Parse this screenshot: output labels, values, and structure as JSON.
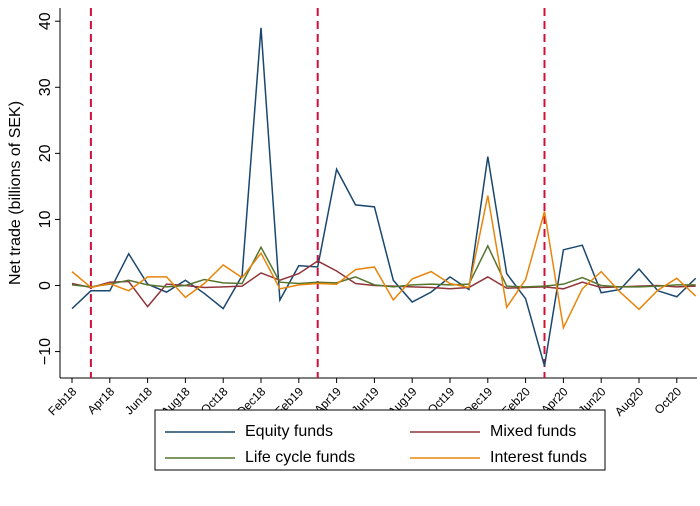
{
  "chart_data": {
    "type": "line",
    "y_label": "Net trade (billions of SEK)",
    "categories": [
      "Feb18",
      null,
      "Apr18",
      null,
      "Jun18",
      null,
      "Aug18",
      null,
      "Oct18",
      null,
      "Dec18",
      null,
      "Feb19",
      null,
      "Apr19",
      null,
      "Jun19",
      null,
      "Aug19",
      null,
      "Oct19",
      null,
      "Dec19",
      null,
      "Feb20",
      null,
      "Apr20",
      null,
      "Jun20",
      null,
      "Aug20",
      null,
      "Oct20",
      null
    ],
    "series": [
      {
        "name": "Equity funds",
        "color": "#1a476f",
        "values": [
          -3.5,
          -0.8,
          -0.8,
          4.8,
          0.2,
          -1,
          0.8,
          -1.2,
          -3.5,
          1.5,
          39,
          -2.2,
          3,
          2.8,
          17.6,
          12.2,
          11.9,
          0.8,
          -2.5,
          -1.0,
          1.3,
          -0.6,
          19.5,
          1.8,
          -2,
          -12.2,
          5.4,
          6.1,
          -1.1,
          -0.6,
          2.5,
          -0.8,
          -1.7,
          1.1
        ]
      },
      {
        "name": "Mixed funds",
        "color": "#90353b",
        "values": [
          0.3,
          -0.3,
          0.5,
          0.6,
          -3.2,
          0.2,
          0.0,
          -0.3,
          -0.2,
          -0.1,
          1.9,
          0.8,
          1.8,
          3.7,
          2.2,
          0.3,
          0.0,
          -0.1,
          -0.2,
          -0.3,
          -0.5,
          -0.3,
          1.3,
          -0.4,
          -0.3,
          -0.2,
          -0.5,
          0.5,
          -0.3,
          -0.2,
          -0.1,
          0,
          -0.2,
          -0.1
        ]
      },
      {
        "name": "Life cycle funds",
        "color": "#55752f",
        "values": [
          0.1,
          -0.2,
          0.2,
          0.8,
          0.1,
          -0.2,
          0,
          0.9,
          0.4,
          0.3,
          5.8,
          0.5,
          0.3,
          0.5,
          0.4,
          1.3,
          0.1,
          -0.2,
          0.1,
          0.2,
          0.1,
          0.2,
          6.0,
          -0.1,
          -0.2,
          -0.1,
          0.2,
          1.2,
          0,
          -0.2,
          -0.2,
          -0.1,
          0.1,
          0.1
        ]
      },
      {
        "name": "Interest funds",
        "color": "#e8850c",
        "values": [
          2.1,
          -0.3,
          0.3,
          -0.8,
          1.3,
          1.3,
          -1.8,
          0.3,
          3.1,
          1.2,
          4.9,
          -0.5,
          0.1,
          0.3,
          0.2,
          2.4,
          2.8,
          -2.2,
          1.0,
          2.1,
          0.3,
          -0.3,
          13.6,
          -3.3,
          0.9,
          11.2,
          -6.4,
          -0.5,
          2.1,
          -1.0,
          -3.6,
          -0.7,
          1.1,
          -1.6
        ]
      }
    ],
    "vlines": [
      1,
      13,
      25
    ],
    "vline_color": "#d0103a",
    "ylim": [
      -14,
      42
    ],
    "yticks": [
      {
        "value": -10,
        "label": "−10"
      },
      0,
      10,
      20,
      30,
      40
    ],
    "grid": false
  }
}
